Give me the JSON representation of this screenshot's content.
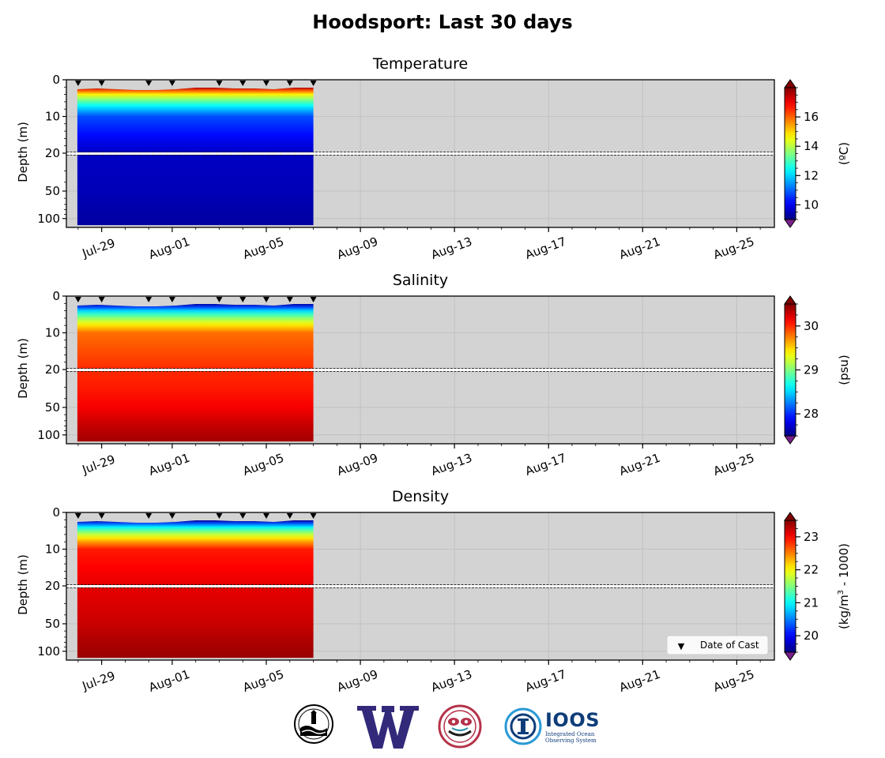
{
  "figure": {
    "title": "Hoodsport: Last 30 days"
  },
  "legend": {
    "marker": "▼",
    "label": "Date of Cast"
  },
  "logos": {
    "items": [
      "noaa-seal-icon",
      "uw-w-logo-icon",
      "northwest-native-art-icon",
      "ioos-logo-icon"
    ],
    "ioos_name": "IOOS",
    "ioos_subtitle": "Integrated Ocean Observing System"
  },
  "chart_data": [
    {
      "type": "heatmap",
      "title": "Temperature",
      "ylabel": "Depth (m)",
      "y_ticks_upper": [
        "0",
        "10",
        "20"
      ],
      "y_ticks_lower": [
        "50",
        "100"
      ],
      "x_ticks": [
        "Jul-29",
        "Aug-01",
        "Aug-05",
        "Aug-09",
        "Aug-13",
        "Aug-17",
        "Aug-21",
        "Aug-25"
      ],
      "cast_dates": [
        "Jul-28",
        "Jul-29",
        "Jul-31",
        "Aug-01",
        "Aug-03",
        "Aug-04",
        "Aug-05",
        "Aug-06",
        "Aug-07"
      ],
      "data_extent": [
        "Jul-28",
        "Aug-07"
      ],
      "profile": {
        "surface": 17.5,
        "depth_10": 10.8,
        "depth_20": 9.6,
        "depth_100": 9.3
      },
      "colorbar": {
        "colormap": "jet",
        "label": "(ºC)",
        "ticks": [
          "10",
          "12",
          "14",
          "16"
        ],
        "range": [
          9.0,
          18.0
        ],
        "extend": "both"
      },
      "background": "#d3d3d3"
    },
    {
      "type": "heatmap",
      "title": "Salinity",
      "ylabel": "Depth (m)",
      "y_ticks_upper": [
        "0",
        "10",
        "20"
      ],
      "y_ticks_lower": [
        "50",
        "100"
      ],
      "x_ticks": [
        "Jul-29",
        "Aug-01",
        "Aug-05",
        "Aug-09",
        "Aug-13",
        "Aug-17",
        "Aug-21",
        "Aug-25"
      ],
      "cast_dates": [
        "Jul-28",
        "Jul-29",
        "Jul-31",
        "Aug-01",
        "Aug-03",
        "Aug-04",
        "Aug-05",
        "Aug-06",
        "Aug-07"
      ],
      "data_extent": [
        "Jul-28",
        "Aug-07"
      ],
      "profile": {
        "surface": 27.6,
        "depth_10": 29.8,
        "depth_20": 30.0,
        "depth_100": 30.4
      },
      "colorbar": {
        "colormap": "jet",
        "label": "(psu)",
        "ticks": [
          "28",
          "29",
          "30"
        ],
        "range": [
          27.5,
          30.5
        ],
        "extend": "both"
      },
      "background": "#d3d3d3"
    },
    {
      "type": "heatmap",
      "title": "Density",
      "ylabel": "Depth (m)",
      "y_ticks_upper": [
        "0",
        "10",
        "20"
      ],
      "y_ticks_lower": [
        "50",
        "100"
      ],
      "x_ticks": [
        "Jul-29",
        "Aug-01",
        "Aug-05",
        "Aug-09",
        "Aug-13",
        "Aug-17",
        "Aug-21",
        "Aug-25"
      ],
      "cast_dates": [
        "Jul-28",
        "Jul-29",
        "Jul-31",
        "Aug-01",
        "Aug-03",
        "Aug-04",
        "Aug-05",
        "Aug-06",
        "Aug-07"
      ],
      "data_extent": [
        "Jul-28",
        "Aug-07"
      ],
      "profile": {
        "surface": 19.6,
        "depth_10": 22.9,
        "depth_20": 23.1,
        "depth_100": 23.4
      },
      "colorbar": {
        "colormap": "jet",
        "label_main": "(kg/m",
        "label_sup": "3",
        "label_end": " - 1000)",
        "ticks": [
          "20",
          "21",
          "22",
          "23"
        ],
        "range": [
          19.5,
          23.5
        ],
        "extend": "both"
      },
      "background": "#d3d3d3",
      "has_legend": true
    }
  ]
}
